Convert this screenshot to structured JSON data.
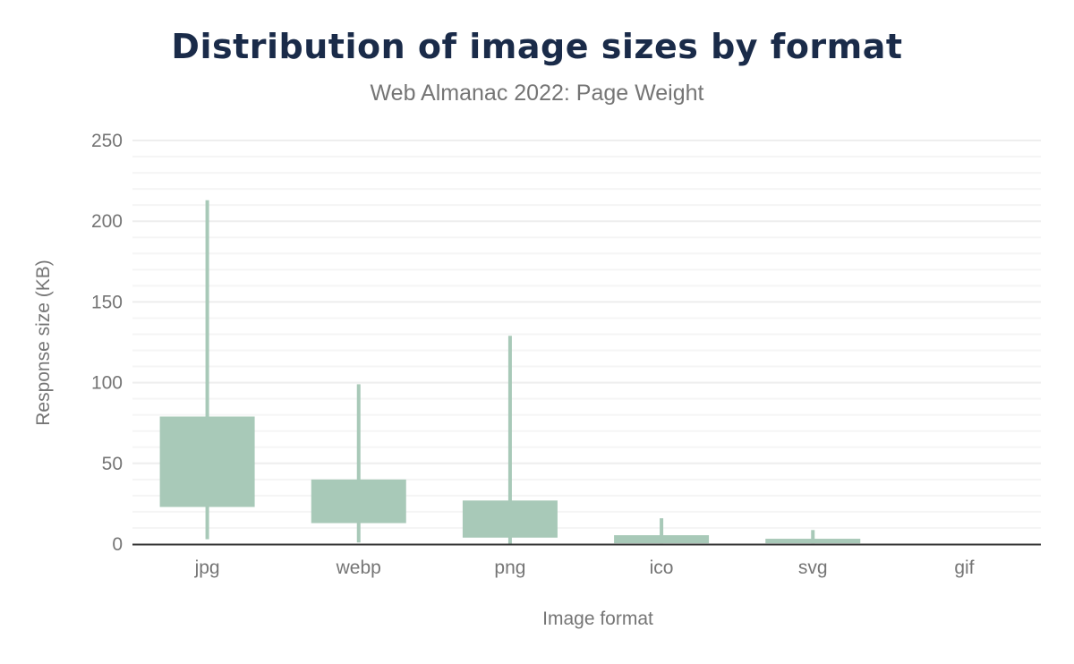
{
  "chart_data": {
    "type": "box",
    "title": "Distribution of image sizes by format",
    "subtitle": "Web Almanac 2022: Page Weight",
    "xlabel": "Image format",
    "ylabel": "Response size (KB)",
    "ylim": [
      0,
      250
    ],
    "yticks": [
      0,
      50,
      100,
      150,
      200,
      250
    ],
    "grid": true,
    "color": "#a8c9b8",
    "categories": [
      "jpg",
      "webp",
      "png",
      "ico",
      "svg",
      "gif"
    ],
    "series": [
      {
        "low": [
          3,
          1,
          0,
          0.5,
          0.5,
          0
        ],
        "q1": [
          23,
          13,
          4,
          0.5,
          0.5,
          0
        ],
        "q3": [
          79,
          40,
          27,
          5.5,
          3.3,
          0
        ],
        "high": [
          213,
          99,
          129,
          16,
          8.7,
          0
        ]
      }
    ]
  }
}
